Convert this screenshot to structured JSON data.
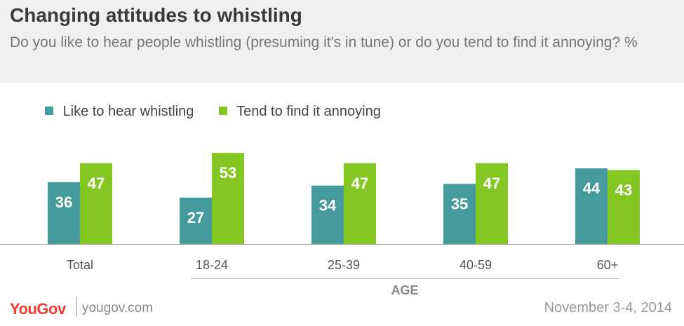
{
  "header": {
    "title": "Changing attitudes to whistling",
    "subtitle": "Do you like to hear people whistling (presuming it's in tune) or do you tend to find it annoying? %"
  },
  "colors": {
    "like": "#459a9c",
    "annoying": "#84c722",
    "header_bg": "#f0f0f0",
    "brand": "#ef3e36"
  },
  "chart_data": {
    "type": "bar",
    "categories": [
      "Total",
      "18-24",
      "25-39",
      "40-59",
      "60+"
    ],
    "series": [
      {
        "name": "Like to hear whistling",
        "values": [
          36,
          27,
          34,
          35,
          44
        ]
      },
      {
        "name": "Tend to find it annoying",
        "values": [
          47,
          53,
          47,
          47,
          43
        ]
      }
    ],
    "group_label": "AGE",
    "grid": false,
    "legend": "top-left"
  },
  "footer": {
    "logo": "YouGov",
    "url": "yougov.com",
    "date": "November 3-4, 2014"
  }
}
